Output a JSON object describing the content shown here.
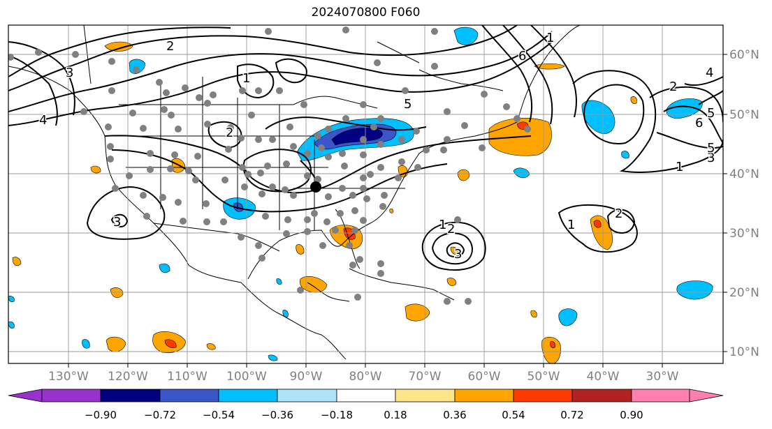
{
  "title": "2024070800 F060",
  "longitude_labels": [
    "130°W",
    "120°W",
    "110°W",
    "100°W",
    "90°W",
    "80°W",
    "70°W",
    "60°W",
    "50°W",
    "40°W",
    "30°W"
  ],
  "latitude_labels": [
    "60°N",
    "50°N",
    "40°N",
    "30°N",
    "20°N",
    "10°N"
  ],
  "colorbar": {
    "tick_labels": [
      "−0.90",
      "−0.72",
      "−0.54",
      "−0.36",
      "−0.18",
      "0.18",
      "0.36",
      "0.54",
      "0.72",
      "0.90"
    ],
    "colors": [
      "#9932cc",
      "#000080",
      "#3a56c9",
      "#00bfff",
      "#aee3fa",
      "#ffffff",
      "#fde68a",
      "#ffa500",
      "#ff3a00",
      "#b22222",
      "#ff80b0"
    ]
  },
  "contour_labels": [
    "1",
    "2",
    "3",
    "4",
    "5",
    "6",
    "1",
    "2",
    "3",
    "1",
    "2",
    "3",
    "4",
    "5",
    "6",
    "1",
    "2",
    "3",
    "5",
    "1",
    "2"
  ],
  "markers": {
    "station_color": "#808080",
    "center_color": "#000000"
  }
}
